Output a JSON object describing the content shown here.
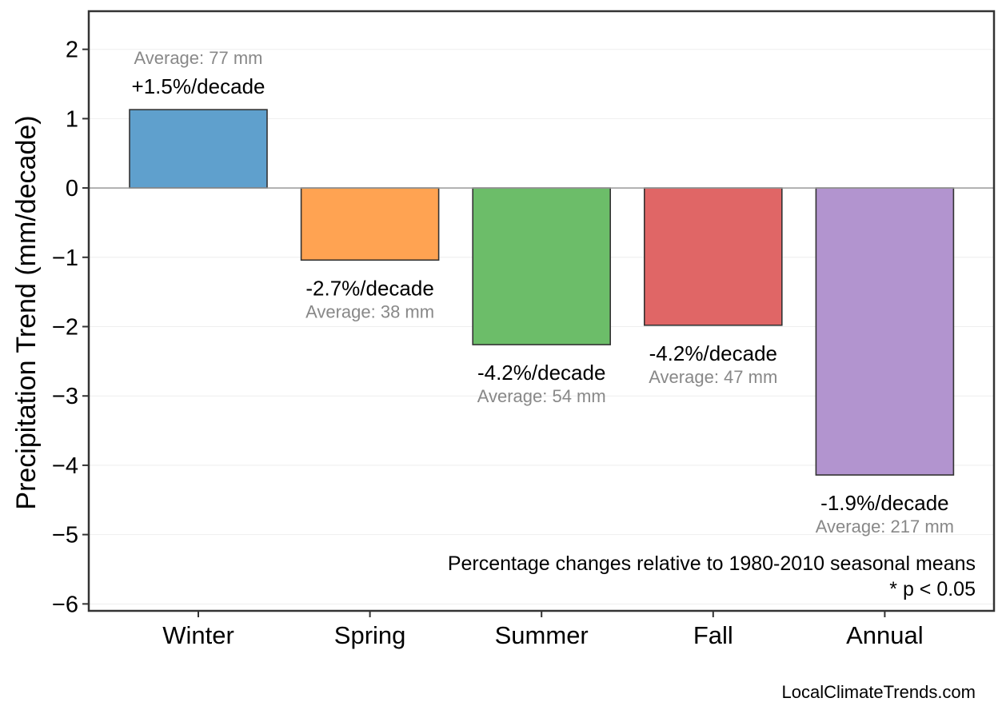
{
  "chart_data": {
    "type": "bar",
    "categories": [
      "Winter",
      "Spring",
      "Summer",
      "Fall",
      "Annual"
    ],
    "values": [
      1.13,
      -1.04,
      -2.26,
      -1.98,
      -4.14
    ],
    "colors": [
      "#5fa0cd",
      "#ffa352",
      "#6cbd69",
      "#e06666",
      "#b294cf"
    ],
    "bar_labels": [
      "+1.5%/decade",
      "-2.7%/decade",
      "-4.2%/decade",
      "-4.2%/decade",
      "-1.9%/decade"
    ],
    "average_labels": [
      "Average: 77 mm",
      "Average: 38 mm",
      "Average: 54 mm",
      "Average: 47 mm",
      "Average: 217 mm"
    ],
    "ylabel": "Precipitation Trend (mm/decade)",
    "ylim": [
      -6.1,
      2.55
    ],
    "yticks": [
      2,
      1,
      0,
      -1,
      -2,
      -3,
      -4,
      -5,
      -6
    ],
    "ytick_labels": [
      "2",
      "1",
      "0",
      "−1",
      "−2",
      "−3",
      "−4",
      "−5",
      "−6"
    ],
    "grid": true,
    "notes": [
      "Percentage changes relative to 1980-2010 seasonal means",
      "* p < 0.05"
    ],
    "credit": "LocalClimateTrends.com"
  }
}
